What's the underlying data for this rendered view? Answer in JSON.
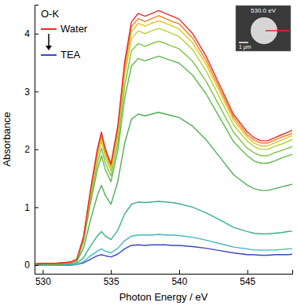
{
  "chart_data": {
    "type": "line",
    "x_label": "Photon Energy / eV",
    "y_label": "Absorbance",
    "annotations": [
      "O-K",
      "530.0 eV",
      "1 μm"
    ],
    "legend": "upper left",
    "grid": false,
    "xlim": [
      529.4,
      548.3
    ],
    "ylim": [
      -0.15,
      4.5
    ],
    "xticks": [
      530,
      535,
      540,
      545
    ],
    "yticks": [
      0,
      1,
      2,
      3,
      4
    ],
    "x": [
      529.5,
      530,
      531,
      532,
      532.5,
      533,
      533.5,
      534,
      534.3,
      534.6,
      535,
      535.5,
      536,
      536.5,
      537,
      537.5,
      538,
      538.5,
      539,
      539.5,
      540,
      541,
      542,
      543,
      544,
      545,
      545.5,
      546,
      546.5,
      547,
      547.5,
      548,
      548.5
    ],
    "series": [
      {
        "name": "Water",
        "color": "#e8292a",
        "values": [
          0.02,
          0.03,
          0.03,
          0.05,
          0.1,
          0.5,
          1.3,
          2.0,
          2.3,
          2.0,
          1.75,
          2.4,
          3.5,
          4.2,
          4.35,
          4.3,
          4.35,
          4.4,
          4.35,
          4.3,
          4.25,
          4.0,
          3.6,
          3.1,
          2.6,
          2.3,
          2.2,
          2.15,
          2.15,
          2.2,
          2.25,
          2.3,
          2.35
        ]
      },
      {
        "color": "#f07f1e",
        "values": [
          0.02,
          0.03,
          0.03,
          0.05,
          0.1,
          0.49,
          1.27,
          1.96,
          2.25,
          1.96,
          1.72,
          2.35,
          3.43,
          4.12,
          4.26,
          4.21,
          4.26,
          4.31,
          4.26,
          4.21,
          4.17,
          3.92,
          3.53,
          3.04,
          2.55,
          2.25,
          2.16,
          2.11,
          2.11,
          2.16,
          2.21,
          2.25,
          2.3
        ]
      },
      {
        "color": "#e5c21d",
        "values": [
          0.02,
          0.03,
          0.03,
          0.05,
          0.1,
          0.48,
          1.25,
          1.92,
          2.21,
          1.92,
          1.68,
          2.3,
          3.36,
          4.03,
          4.18,
          4.13,
          4.18,
          4.22,
          4.18,
          4.13,
          4.08,
          3.84,
          3.46,
          2.98,
          2.5,
          2.21,
          2.11,
          2.06,
          2.06,
          2.11,
          2.16,
          2.21,
          2.26
        ]
      },
      {
        "color": "#b8d030",
        "values": [
          0.02,
          0.03,
          0.03,
          0.05,
          0.09,
          0.47,
          1.21,
          1.86,
          2.14,
          1.86,
          1.63,
          2.23,
          3.26,
          3.91,
          4.05,
          4.0,
          4.05,
          4.09,
          4.05,
          4.0,
          3.95,
          3.72,
          3.35,
          2.88,
          2.42,
          2.14,
          2.05,
          2.0,
          2.0,
          2.05,
          2.09,
          2.14,
          2.19
        ]
      },
      {
        "color": "#7cc242",
        "values": [
          0.02,
          0.03,
          0.03,
          0.04,
          0.09,
          0.44,
          1.14,
          1.76,
          2.02,
          1.76,
          1.54,
          2.11,
          3.08,
          3.7,
          3.83,
          3.78,
          3.83,
          3.87,
          3.83,
          3.78,
          3.74,
          3.52,
          3.17,
          2.73,
          2.29,
          2.02,
          1.94,
          1.89,
          1.89,
          1.94,
          1.98,
          2.02,
          2.07
        ]
      },
      {
        "color": "#5db84a",
        "values": [
          0.02,
          0.02,
          0.02,
          0.04,
          0.08,
          0.41,
          1.07,
          1.64,
          1.89,
          1.64,
          1.44,
          1.97,
          2.87,
          3.44,
          3.57,
          3.53,
          3.57,
          3.61,
          3.57,
          3.53,
          3.49,
          3.28,
          2.95,
          2.54,
          2.13,
          1.89,
          1.8,
          1.76,
          1.76,
          1.8,
          1.85,
          1.89,
          1.93
        ]
      },
      {
        "color": "#4fae57",
        "values": [
          0.01,
          0.02,
          0.02,
          0.03,
          0.06,
          0.3,
          0.78,
          1.2,
          1.38,
          1.2,
          1.05,
          1.44,
          2.1,
          2.52,
          2.61,
          2.58,
          2.61,
          2.64,
          2.61,
          2.58,
          2.55,
          2.4,
          2.16,
          1.86,
          1.56,
          1.38,
          1.32,
          1.29,
          1.29,
          1.32,
          1.35,
          1.38,
          1.41
        ]
      },
      {
        "color": "#39b08e",
        "values": [
          0.01,
          0.01,
          0.01,
          0.01,
          0.03,
          0.13,
          0.33,
          0.5,
          0.58,
          0.5,
          0.44,
          0.6,
          0.88,
          1.05,
          1.09,
          1.08,
          1.09,
          1.1,
          1.09,
          1.08,
          1.06,
          1.0,
          0.9,
          0.78,
          0.65,
          0.58,
          0.55,
          0.54,
          0.54,
          0.55,
          0.56,
          0.58,
          0.59
        ]
      },
      {
        "color": "#3fb6c8",
        "values": [
          0,
          0,
          0,
          0.01,
          0.01,
          0.06,
          0.16,
          0.24,
          0.28,
          0.24,
          0.21,
          0.29,
          0.42,
          0.5,
          0.52,
          0.52,
          0.52,
          0.53,
          0.52,
          0.52,
          0.51,
          0.48,
          0.43,
          0.37,
          0.31,
          0.28,
          0.26,
          0.26,
          0.26,
          0.26,
          0.27,
          0.28,
          0.28
        ]
      },
      {
        "name": "TEA",
        "color": "#3b46c0",
        "values": [
          0,
          0,
          0,
          0,
          0.01,
          0.04,
          0.1,
          0.16,
          0.18,
          0.16,
          0.14,
          0.19,
          0.28,
          0.34,
          0.35,
          0.34,
          0.35,
          0.35,
          0.35,
          0.34,
          0.34,
          0.32,
          0.29,
          0.25,
          0.21,
          0.18,
          0.18,
          0.17,
          0.17,
          0.18,
          0.18,
          0.18,
          0.19
        ]
      }
    ]
  }
}
